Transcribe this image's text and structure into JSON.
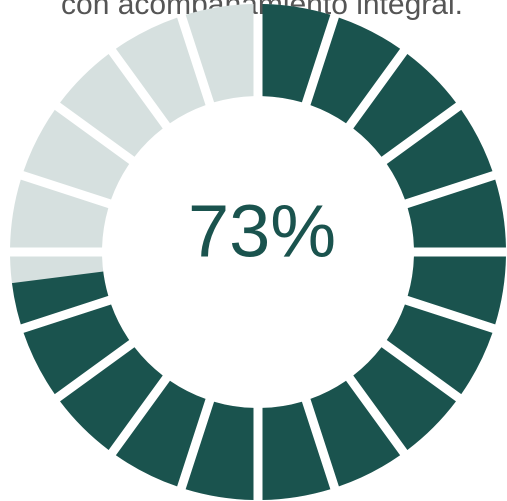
{
  "chart_data": {
    "type": "donut",
    "caption": "con acompañamiento integral.",
    "value": 73,
    "value_label": "73%",
    "range": [
      0,
      100
    ],
    "segments": 20,
    "color": "#1a534e",
    "track_color": "#d6e0df"
  }
}
